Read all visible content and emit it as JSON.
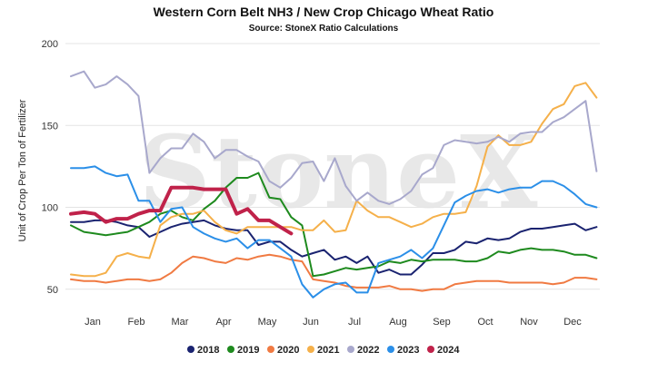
{
  "chart_data": {
    "type": "line",
    "title": "Western Corn Belt NH3 / New Crop Chicago Wheat Ratio",
    "subtitle": "Source: StoneX Ratio Calculations",
    "ylabel": "Unit of Crop Per Ton of Fertilizer",
    "xlabel": "",
    "watermark": "StoneX",
    "ylim": [
      45,
      200
    ],
    "yticks": [
      50,
      100,
      150,
      200
    ],
    "xlim": [
      0,
      12
    ],
    "xticks": [
      {
        "label": "Jan",
        "x": 0.5
      },
      {
        "label": "Feb",
        "x": 1.5
      },
      {
        "label": "Mar",
        "x": 2.5
      },
      {
        "label": "Apr",
        "x": 3.5
      },
      {
        "label": "May",
        "x": 4.5
      },
      {
        "label": "Jun",
        "x": 5.5
      },
      {
        "label": "Jul",
        "x": 6.5
      },
      {
        "label": "Aug",
        "x": 7.5
      },
      {
        "label": "Sep",
        "x": 8.5
      },
      {
        "label": "Oct",
        "x": 9.5
      },
      {
        "label": "Nov",
        "x": 10.5
      },
      {
        "label": "Dec",
        "x": 11.5
      }
    ],
    "grid": true,
    "legend": "bottom",
    "series": [
      {
        "name": "2018",
        "color": "#1a2370",
        "width": 2,
        "x": [
          0,
          0.3,
          0.55,
          0.8,
          1.05,
          1.3,
          1.55,
          1.8,
          2.05,
          2.3,
          2.55,
          2.8,
          3.05,
          3.3,
          3.55,
          3.8,
          4.05,
          4.3,
          4.55,
          4.8,
          5.05,
          5.3,
          5.55,
          5.8,
          6.05,
          6.3,
          6.55,
          6.8,
          7.05,
          7.3,
          7.55,
          7.8,
          8.05,
          8.3,
          8.55,
          8.8,
          9.05,
          9.3,
          9.55,
          9.8,
          10.05,
          10.3,
          10.55,
          10.8,
          11.05,
          11.3,
          11.55,
          11.8,
          12.05
        ],
        "y": [
          91,
          91,
          92,
          92,
          91,
          89,
          88,
          82,
          85,
          88,
          90,
          91,
          92,
          89,
          87,
          86,
          86,
          77,
          79,
          79,
          74,
          70,
          72,
          74,
          68,
          70,
          66,
          70,
          60,
          62,
          59,
          59,
          65,
          72,
          72,
          74,
          79,
          78,
          81,
          80,
          81,
          85,
          87,
          87,
          88,
          89,
          90,
          86,
          88
        ]
      },
      {
        "name": "2019",
        "color": "#1e8a1e",
        "width": 2,
        "x": [
          0,
          0.3,
          0.55,
          0.8,
          1.05,
          1.3,
          1.55,
          1.8,
          2.05,
          2.3,
          2.55,
          2.8,
          3.05,
          3.3,
          3.55,
          3.8,
          4.05,
          4.3,
          4.55,
          4.8,
          5.05,
          5.3,
          5.55,
          5.8,
          6.05,
          6.3,
          6.55,
          6.8,
          7.05,
          7.3,
          7.55,
          7.8,
          8.05,
          8.3,
          8.55,
          8.8,
          9.05,
          9.3,
          9.55,
          9.8,
          10.05,
          10.3,
          10.55,
          10.8,
          11.05,
          11.3,
          11.55,
          11.8,
          12.05
        ],
        "y": [
          89,
          85,
          84,
          83,
          84,
          85,
          88,
          91,
          96,
          98,
          94,
          92,
          99,
          104,
          112,
          118,
          118,
          121,
          106,
          105,
          94,
          89,
          58,
          59,
          61,
          63,
          62,
          63,
          64,
          67,
          66,
          68,
          67,
          68,
          68,
          68,
          67,
          67,
          69,
          73,
          72,
          74,
          75,
          74,
          74,
          73,
          71,
          71,
          69
        ]
      },
      {
        "name": "2020",
        "color": "#f07a42",
        "width": 2,
        "x": [
          0,
          0.3,
          0.55,
          0.8,
          1.05,
          1.3,
          1.55,
          1.8,
          2.05,
          2.3,
          2.55,
          2.8,
          3.05,
          3.3,
          3.55,
          3.8,
          4.05,
          4.3,
          4.55,
          4.8,
          5.05,
          5.3,
          5.55,
          5.8,
          6.05,
          6.3,
          6.55,
          6.8,
          7.05,
          7.3,
          7.55,
          7.8,
          8.05,
          8.3,
          8.55,
          8.8,
          9.05,
          9.3,
          9.55,
          9.8,
          10.05,
          10.3,
          10.55,
          10.8,
          11.05,
          11.3,
          11.55,
          11.8,
          12.05
        ],
        "y": [
          56,
          55,
          55,
          54,
          55,
          56,
          56,
          55,
          56,
          60,
          66,
          70,
          69,
          67,
          66,
          69,
          68,
          70,
          71,
          70,
          68,
          67,
          56,
          55,
          54,
          52,
          51,
          51,
          51,
          52,
          50,
          50,
          49,
          50,
          50,
          53,
          54,
          55,
          55,
          55,
          54,
          54,
          54,
          54,
          53,
          54,
          57,
          57,
          56
        ]
      },
      {
        "name": "2021",
        "color": "#f5b04a",
        "width": 2,
        "x": [
          0,
          0.3,
          0.55,
          0.8,
          1.05,
          1.3,
          1.55,
          1.8,
          2.05,
          2.3,
          2.55,
          2.8,
          3.05,
          3.3,
          3.55,
          3.8,
          4.05,
          4.3,
          4.55,
          4.8,
          5.05,
          5.3,
          5.55,
          5.8,
          6.05,
          6.3,
          6.55,
          6.8,
          7.05,
          7.3,
          7.55,
          7.8,
          8.05,
          8.3,
          8.55,
          8.8,
          9.05,
          9.3,
          9.55,
          9.8,
          10.05,
          10.3,
          10.55,
          10.8,
          11.05,
          11.3,
          11.55,
          11.8,
          12.05
        ],
        "y": [
          59,
          58,
          58,
          60,
          70,
          72,
          70,
          69,
          89,
          94,
          96,
          96,
          98,
          91,
          86,
          84,
          88,
          88,
          88,
          88,
          88,
          86,
          86,
          92,
          85,
          86,
          104,
          98,
          94,
          94,
          91,
          88,
          90,
          94,
          96,
          96,
          97,
          113,
          137,
          144,
          138,
          138,
          140,
          151,
          160,
          163,
          174,
          176,
          167
        ]
      },
      {
        "name": "2022",
        "color": "#a8a8cc",
        "width": 2,
        "x": [
          0,
          0.3,
          0.55,
          0.8,
          1.05,
          1.3,
          1.55,
          1.8,
          2.05,
          2.3,
          2.55,
          2.8,
          3.05,
          3.3,
          3.55,
          3.8,
          4.05,
          4.3,
          4.55,
          4.8,
          5.05,
          5.3,
          5.55,
          5.8,
          6.05,
          6.3,
          6.55,
          6.8,
          7.05,
          7.3,
          7.55,
          7.8,
          8.05,
          8.3,
          8.55,
          8.8,
          9.05,
          9.3,
          9.55,
          9.8,
          10.05,
          10.3,
          10.55,
          10.8,
          11.05,
          11.3,
          11.55,
          11.8,
          12.05
        ],
        "y": [
          180,
          183,
          173,
          175,
          180,
          175,
          168,
          121,
          130,
          136,
          136,
          145,
          140,
          130,
          135,
          135,
          131,
          128,
          116,
          112,
          118,
          127,
          128,
          116,
          130,
          113,
          104,
          109,
          104,
          102,
          105,
          110,
          120,
          124,
          138,
          141,
          140,
          139,
          140,
          143,
          140,
          145,
          146,
          146,
          152,
          155,
          160,
          165,
          122
        ]
      },
      {
        "name": "2023",
        "color": "#2b8fe8",
        "width": 2,
        "x": [
          0,
          0.3,
          0.55,
          0.8,
          1.05,
          1.3,
          1.55,
          1.8,
          2.05,
          2.3,
          2.55,
          2.8,
          3.05,
          3.3,
          3.55,
          3.8,
          4.05,
          4.3,
          4.55,
          4.8,
          5.05,
          5.3,
          5.55,
          5.8,
          6.05,
          6.3,
          6.55,
          6.8,
          7.05,
          7.3,
          7.55,
          7.8,
          8.05,
          8.3,
          8.55,
          8.8,
          9.05,
          9.3,
          9.55,
          9.8,
          10.05,
          10.3,
          10.55,
          10.8,
          11.05,
          11.3,
          11.55,
          11.8,
          12.05
        ],
        "y": [
          124,
          124,
          125,
          121,
          119,
          120,
          104,
          104,
          91,
          99,
          100,
          88,
          84,
          81,
          79,
          81,
          75,
          80,
          80,
          75,
          70,
          53,
          45,
          50,
          53,
          54,
          48,
          48,
          66,
          68,
          70,
          74,
          69,
          75,
          89,
          103,
          107,
          110,
          111,
          109,
          111,
          112,
          112,
          116,
          116,
          113,
          108,
          102,
          100
        ]
      },
      {
        "name": "2024",
        "color": "#c0224a",
        "width": 4,
        "x": [
          0,
          0.3,
          0.55,
          0.8,
          1.05,
          1.3,
          1.55,
          1.8,
          2.05,
          2.3,
          2.55,
          2.8,
          3.05,
          3.3,
          3.55,
          3.8,
          4.05,
          4.3,
          4.55,
          4.8,
          5.05
        ],
        "y": [
          96,
          97,
          96,
          91,
          93,
          93,
          96,
          98,
          98,
          112,
          112,
          112,
          111,
          111,
          111,
          96,
          99,
          92,
          92,
          88,
          84
        ]
      }
    ]
  }
}
